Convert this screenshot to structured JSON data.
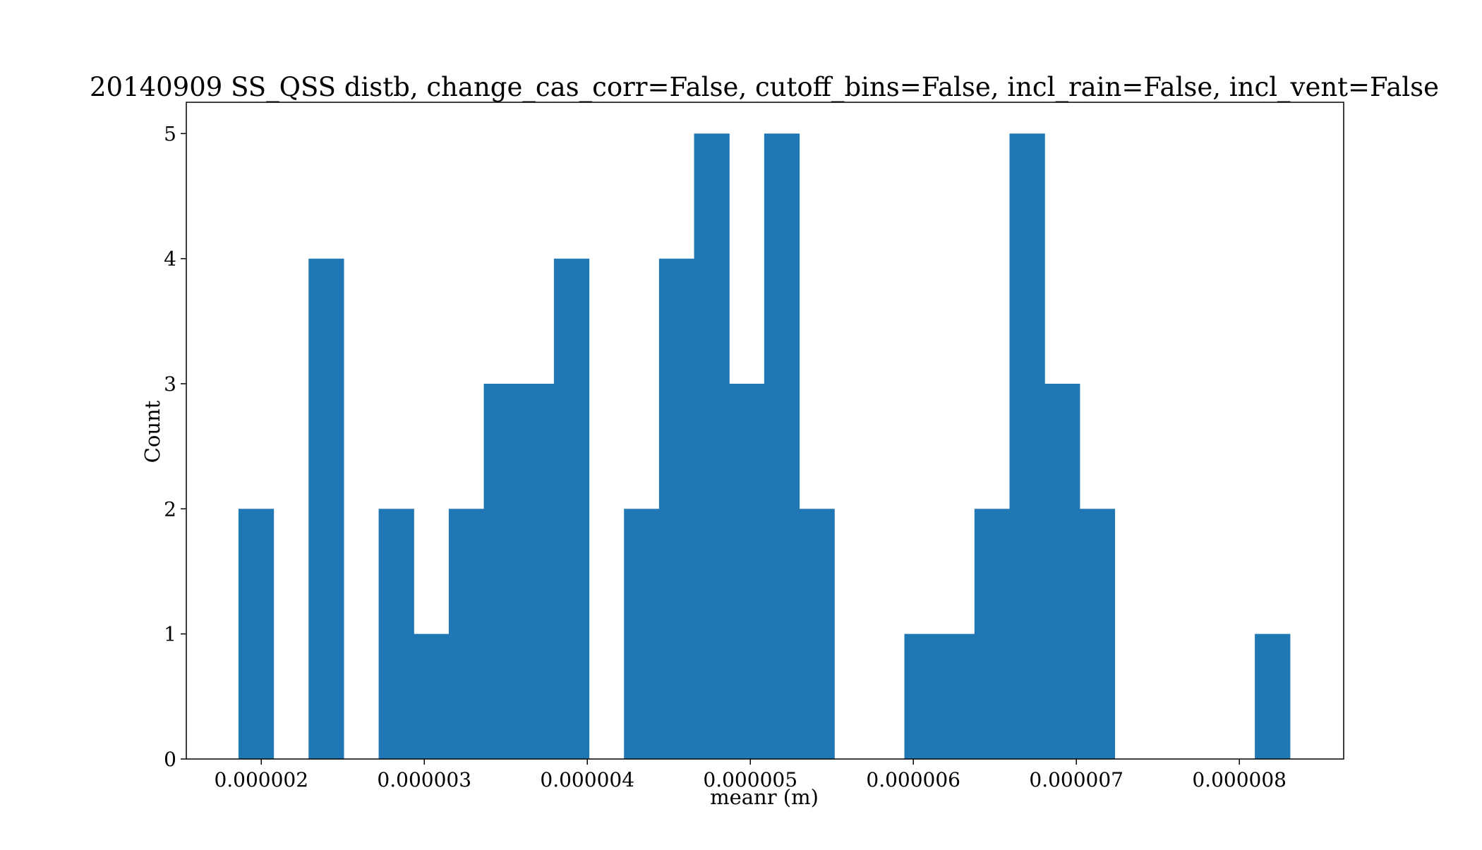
{
  "chart_data": {
    "type": "bar",
    "title": "20140909 SS_QSS distb, change_cas_corr=False, cutoff_bins=False, incl_rain=False, incl_vent=False",
    "xlabel": "meanr (m)",
    "ylabel": "Count",
    "xlim": [
      1.54e-06,
      8.64e-06
    ],
    "ylim": [
      0,
      5.25
    ],
    "grid": false,
    "bin_width": 2.15e-07,
    "bin_edges": [
      1.86e-06,
      2.075e-06,
      2.29e-06,
      2.505e-06,
      2.72e-06,
      2.935e-06,
      3.15e-06,
      3.365e-06,
      3.58e-06,
      3.795e-06,
      4.01e-06,
      4.225e-06,
      4.44e-06,
      4.655e-06,
      4.87e-06,
      5.085e-06,
      5.3e-06,
      5.515e-06,
      5.73e-06,
      5.945e-06,
      6.16e-06,
      6.375e-06,
      6.59e-06,
      6.805e-06,
      7.02e-06,
      7.235e-06,
      7.45e-06,
      7.665e-06,
      7.88e-06,
      8.095e-06,
      8.31e-06
    ],
    "counts": [
      2,
      0,
      4,
      0,
      2,
      1,
      2,
      3,
      3,
      4,
      0,
      2,
      4,
      5,
      3,
      5,
      2,
      0,
      0,
      1,
      1,
      2,
      5,
      3,
      2,
      0,
      0,
      0,
      0,
      1
    ],
    "bar_color": "#1f77b4",
    "x_ticks": [
      {
        "value": 2e-06,
        "label": "0.000002"
      },
      {
        "value": 3e-06,
        "label": "0.000003"
      },
      {
        "value": 4e-06,
        "label": "0.000004"
      },
      {
        "value": 5e-06,
        "label": "0.000005"
      },
      {
        "value": 6e-06,
        "label": "0.000006"
      },
      {
        "value": 7e-06,
        "label": "0.000007"
      },
      {
        "value": 8e-06,
        "label": "0.000008"
      }
    ],
    "y_ticks": [
      {
        "value": 0,
        "label": "0"
      },
      {
        "value": 1,
        "label": "1"
      },
      {
        "value": 2,
        "label": "2"
      },
      {
        "value": 3,
        "label": "3"
      },
      {
        "value": 4,
        "label": "4"
      },
      {
        "value": 5,
        "label": "5"
      }
    ]
  }
}
